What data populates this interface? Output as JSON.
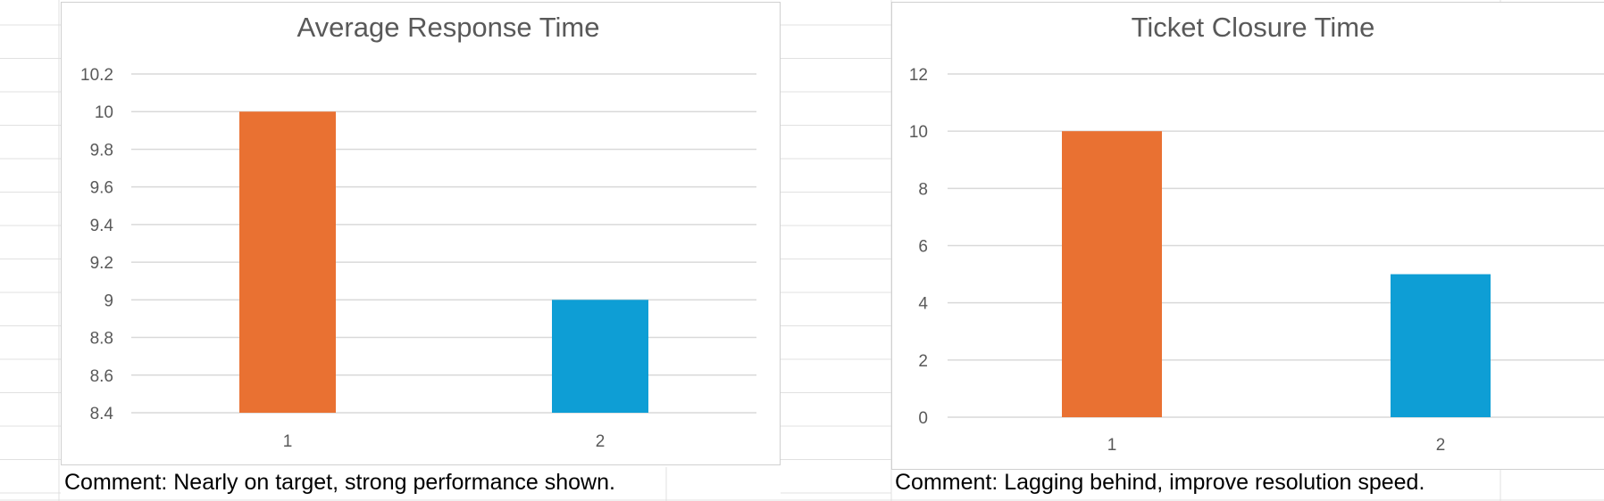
{
  "chart_data": [
    {
      "type": "bar",
      "title": "Average Response Time",
      "categories": [
        "1",
        "2"
      ],
      "values": [
        10,
        9
      ],
      "colors": [
        "#E97132",
        "#0E9ED5"
      ],
      "ylim": [
        8.4,
        10.2
      ],
      "yticks": [
        "8.4",
        "8.6",
        "8.8",
        "9",
        "9.2",
        "9.4",
        "9.6",
        "9.8",
        "10",
        "10.2"
      ],
      "grid": true,
      "legend": "none"
    },
    {
      "type": "bar",
      "title": "Ticket Closure Time",
      "categories": [
        "1",
        "2"
      ],
      "values": [
        10,
        5
      ],
      "colors": [
        "#E97132",
        "#0E9ED5"
      ],
      "ylim": [
        0,
        12
      ],
      "yticks": [
        "0",
        "2",
        "4",
        "6",
        "8",
        "10",
        "12"
      ],
      "grid": true,
      "legend": "none"
    }
  ],
  "comments": [
    "Comment: Nearly on target, strong performance shown.",
    "Comment: Lagging behind, improve resolution speed."
  ],
  "colors": {
    "gridline": "#d9d9d9",
    "sheet_gridline": "#e1e1e1",
    "axis_text": "#595959"
  }
}
